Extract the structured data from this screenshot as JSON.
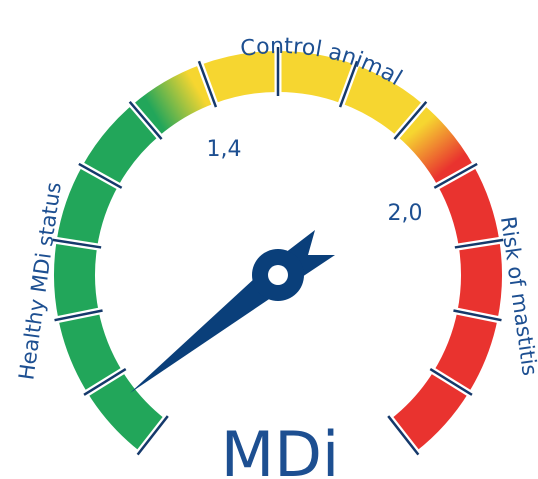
{
  "title": "MDi",
  "scale_labels": [
    "1,4",
    "2,0"
  ],
  "zones": {
    "left": "Healthy MDi status",
    "top": "Control animal",
    "right": "Risk of mastitis"
  }
}
